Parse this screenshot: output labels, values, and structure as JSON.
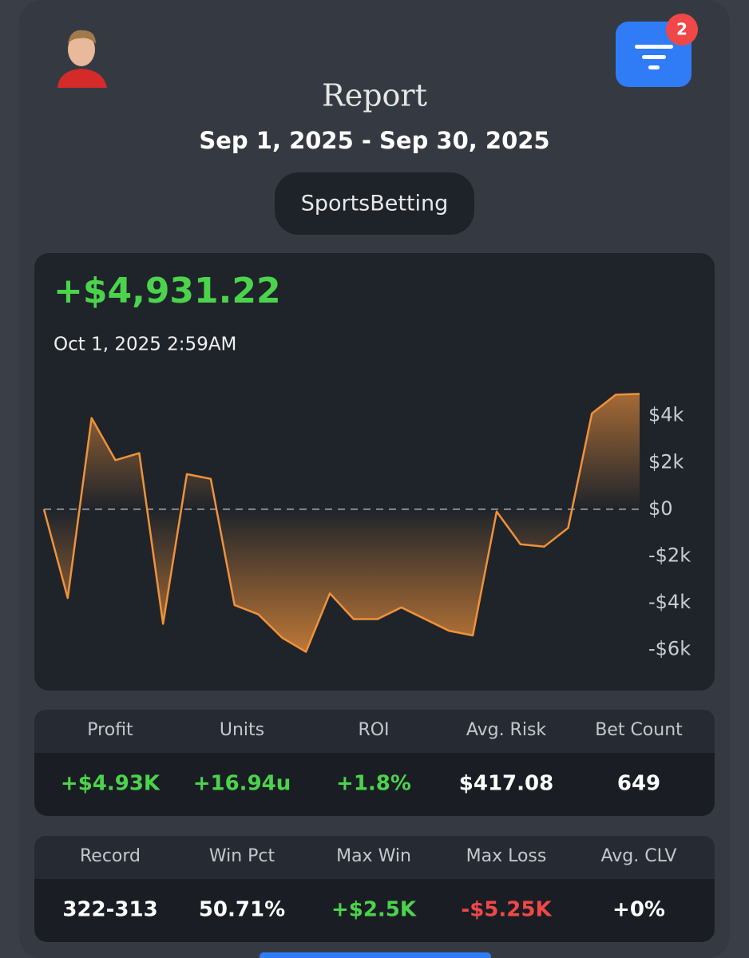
{
  "header": {
    "title": "Report",
    "date_range": "Sep 1, 2025 - Sep 30, 2025",
    "badge": "2",
    "filter_chip": "SportsBetting"
  },
  "summary": {
    "total": "+$4,931.22",
    "timestamp": "Oct 1, 2025 2:59AM"
  },
  "chart_data": {
    "type": "area",
    "values": [
      0,
      -3800,
      3900,
      2100,
      2400,
      -4900,
      1500,
      1300,
      -4100,
      -4500,
      -5500,
      -6100,
      -3600,
      -4700,
      -4700,
      -4200,
      -4700,
      -5200,
      -5400,
      -100,
      -1500,
      -1600,
      -800,
      4100,
      4900,
      4931.22
    ],
    "color": "#f0923a",
    "ylim": [
      -6800,
      5800
    ],
    "yticks": [
      {
        "value": 4000,
        "label": "$4k"
      },
      {
        "value": 2000,
        "label": "$2k"
      },
      {
        "value": 0,
        "label": "$0"
      },
      {
        "value": -2000,
        "label": "-$2k"
      },
      {
        "value": -4000,
        "label": "-$4k"
      },
      {
        "value": -6000,
        "label": "-$6k"
      }
    ]
  },
  "stats": [
    {
      "headers": [
        "Profit",
        "Units",
        "ROI",
        "Avg. Risk",
        "Bet Count"
      ],
      "values": [
        "+$4.93K",
        "+16.94u",
        "+1.8%",
        "$417.08",
        "649"
      ]
    },
    {
      "headers": [
        "Record",
        "Win Pct",
        "Max Win",
        "Max Loss",
        "Avg. CLV"
      ],
      "values": [
        "322-313",
        "50.71%",
        "+$2.5K",
        "-$5.25K",
        "+0%"
      ]
    }
  ]
}
